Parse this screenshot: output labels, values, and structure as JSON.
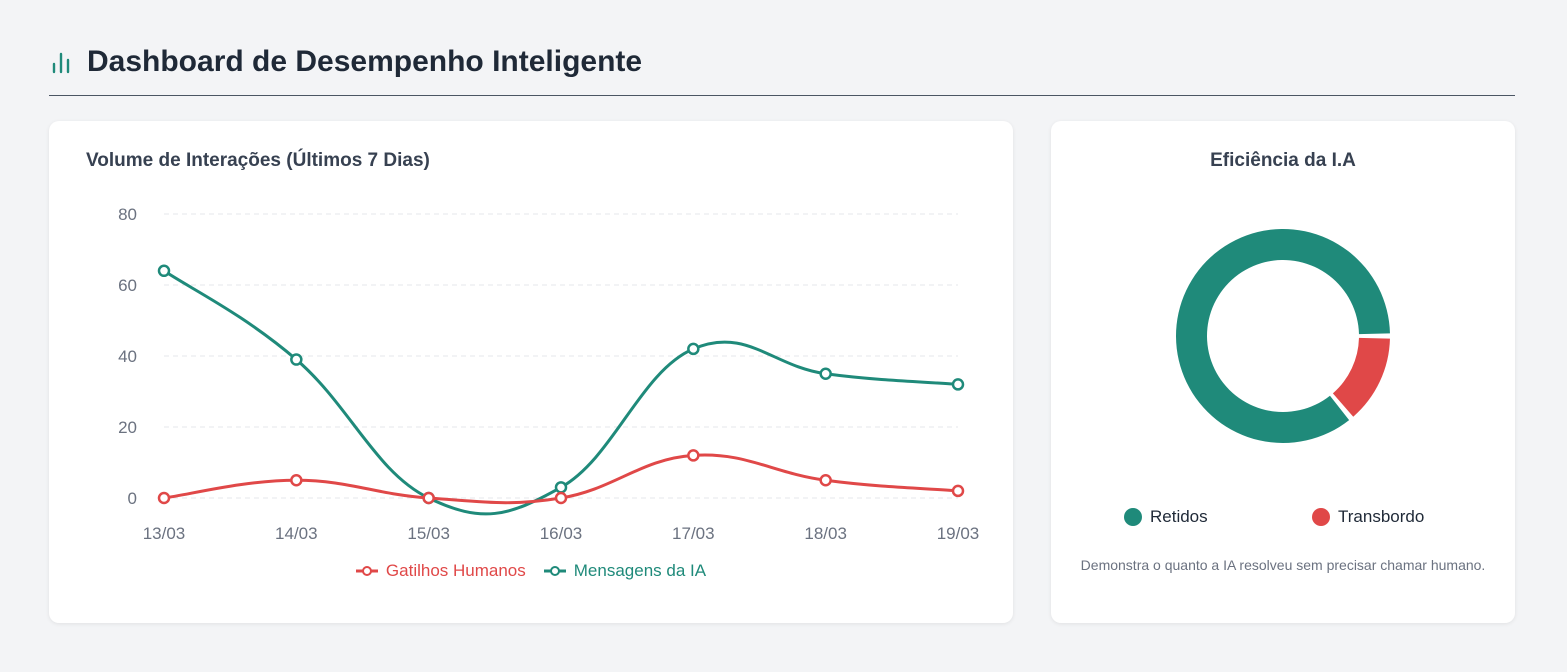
{
  "header": {
    "title": "Dashboard de Desempenho Inteligente",
    "icon": "bar-chart-icon"
  },
  "colors": {
    "teal": "#1f8a7a",
    "red": "#e04848"
  },
  "chart_data": [
    {
      "type": "line",
      "title": "Volume de Interações (Últimos 7 Dias)",
      "categories": [
        "13/03",
        "14/03",
        "15/03",
        "16/03",
        "17/03",
        "18/03",
        "19/03"
      ],
      "yticks": [
        "0",
        "20",
        "40",
        "60",
        "80"
      ],
      "ylim": [
        0,
        80
      ],
      "series": [
        {
          "name": "Gatilhos Humanos",
          "color": "#e04848",
          "values": [
            0,
            5,
            0,
            0,
            12,
            5,
            2
          ]
        },
        {
          "name": "Mensagens da IA",
          "color": "#1f8a7a",
          "values": [
            64,
            39,
            0,
            3,
            42,
            35,
            32
          ]
        }
      ],
      "legend": "bottom",
      "grid": true
    },
    {
      "type": "pie",
      "title": "Eficiência da I.A",
      "labels": [
        "Retidos",
        "Transbordo"
      ],
      "values": [
        86,
        14
      ],
      "colors": [
        "#1f8a7a",
        "#e04848"
      ],
      "legend": "bottom",
      "description": "Demonstra o quanto a IA resolveu sem precisar chamar humano."
    }
  ]
}
